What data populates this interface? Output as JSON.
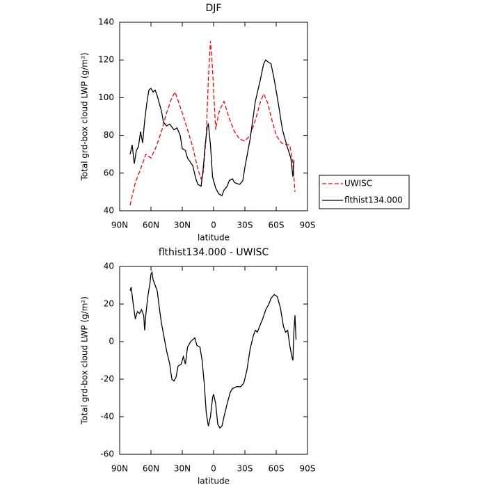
{
  "chart_data": [
    {
      "type": "line",
      "title": "DJF",
      "x_label": "latitude",
      "y_label": "Total grd-box cloud LWP (g/m²)",
      "xlim": [
        90,
        -90
      ],
      "xticks": [
        {
          "value": 90,
          "label": "90N"
        },
        {
          "value": 60,
          "label": "60N"
        },
        {
          "value": 30,
          "label": "30N"
        },
        0,
        {
          "value": -30,
          "label": "30S"
        },
        {
          "value": -60,
          "label": "60S"
        },
        {
          "value": -90,
          "label": "90S"
        }
      ],
      "ylim": [
        40,
        140
      ],
      "yticks": [
        40,
        60,
        80,
        100,
        120,
        140
      ],
      "legend": "right",
      "series": [
        {
          "name": "UWISC",
          "color": "#ff0000",
          "dashed": true,
          "x": [
            80,
            75,
            70,
            65,
            60,
            55,
            50,
            45,
            40,
            37,
            35,
            30,
            25,
            20,
            15,
            12,
            10,
            7,
            5,
            3,
            1,
            -2,
            -5,
            -8,
            -10,
            -15,
            -20,
            -25,
            -30,
            -35,
            -40,
            -45,
            -48,
            -52,
            -55,
            -60,
            -65,
            -70,
            -73,
            -76,
            -78
          ],
          "values": [
            43,
            55,
            62,
            70,
            68,
            74,
            82,
            92,
            100,
            103,
            100,
            92,
            83,
            74,
            62,
            57,
            60,
            80,
            110,
            130,
            115,
            83,
            92,
            96,
            98,
            89,
            82,
            78,
            77,
            80,
            88,
            98,
            102,
            97,
            90,
            80,
            76,
            75,
            75,
            65,
            50
          ]
        },
        {
          "name": "flthist134.000",
          "color": "#000000",
          "dashed": false,
          "x": [
            80,
            78,
            76,
            74,
            72,
            70,
            68,
            66,
            64,
            62,
            60,
            58,
            56,
            54,
            50,
            48,
            45,
            42,
            38,
            35,
            32,
            30,
            27,
            25,
            20,
            17,
            15,
            12,
            10,
            8,
            6,
            5,
            3,
            1,
            -2,
            -5,
            -8,
            -10,
            -13,
            -15,
            -18,
            -20,
            -25,
            -28,
            -30,
            -35,
            -40,
            -45,
            -48,
            -50,
            -52,
            -55,
            -58,
            -62,
            -66,
            -70,
            -74,
            -76,
            -77
          ],
          "values": [
            70,
            75,
            65,
            72,
            74,
            82,
            76,
            88,
            97,
            104,
            105,
            103,
            104,
            101,
            93,
            87,
            85,
            86,
            83,
            84,
            80,
            73,
            72,
            68,
            64,
            57,
            54,
            53,
            62,
            75,
            85,
            86,
            75,
            58,
            52,
            49,
            48,
            51,
            53,
            56,
            57,
            55,
            54,
            56,
            63,
            78,
            98,
            110,
            118,
            120,
            119,
            118,
            110,
            97,
            83,
            75,
            68,
            58,
            67
          ]
        }
      ]
    },
    {
      "type": "line",
      "title": "flthist134.000 - UWISC",
      "x_label": "latitude",
      "y_label": "Total grd-box cloud LWP (g/m²)",
      "xlim": [
        90,
        -90
      ],
      "xticks": [
        {
          "value": 90,
          "label": "90N"
        },
        {
          "value": 60,
          "label": "60N"
        },
        {
          "value": 30,
          "label": "30N"
        },
        0,
        {
          "value": -30,
          "label": "30S"
        },
        {
          "value": -60,
          "label": "60S"
        },
        {
          "value": -90,
          "label": "90S"
        }
      ],
      "ylim": [
        -60,
        40
      ],
      "yticks": [
        -60,
        -40,
        -20,
        0,
        20,
        40
      ],
      "series": [
        {
          "color": "#000000",
          "dashed": false,
          "x": [
            80,
            79,
            77,
            75,
            73,
            71,
            69,
            67,
            66,
            65,
            63,
            61,
            60,
            59,
            58,
            56,
            54,
            52,
            50,
            48,
            45,
            42,
            40,
            38,
            36,
            34,
            31,
            29,
            27,
            25,
            22,
            20,
            18,
            16,
            13,
            11,
            9,
            7,
            5,
            3,
            1,
            0,
            -2,
            -4,
            -6,
            -8,
            -10,
            -13,
            -16,
            -18,
            -22,
            -26,
            -29,
            -32,
            -35,
            -38,
            -40,
            -42,
            -44,
            -47,
            -50,
            -53,
            -55,
            -58,
            -61,
            -64,
            -67,
            -69,
            -71,
            -73,
            -75,
            -76,
            -77,
            -78,
            -79
          ],
          "values": [
            27,
            29,
            20,
            12,
            16,
            15,
            17,
            14,
            6,
            14,
            24,
            31,
            36,
            37,
            33,
            30,
            27,
            18,
            10,
            4,
            -5,
            -12,
            -20,
            -21,
            -19,
            -13,
            -12,
            -8,
            -12,
            -3,
            0,
            1,
            2,
            -2,
            -3,
            -10,
            -22,
            -38,
            -45,
            -40,
            -30,
            -28,
            -33,
            -44,
            -46,
            -45,
            -40,
            -33,
            -27,
            -25,
            -24,
            -24,
            -22,
            -15,
            -4,
            3,
            6,
            5,
            8,
            12,
            17,
            20,
            23,
            25,
            24,
            18,
            8,
            5,
            6,
            -2,
            -8,
            -10,
            6,
            14,
            1
          ]
        }
      ]
    }
  ]
}
